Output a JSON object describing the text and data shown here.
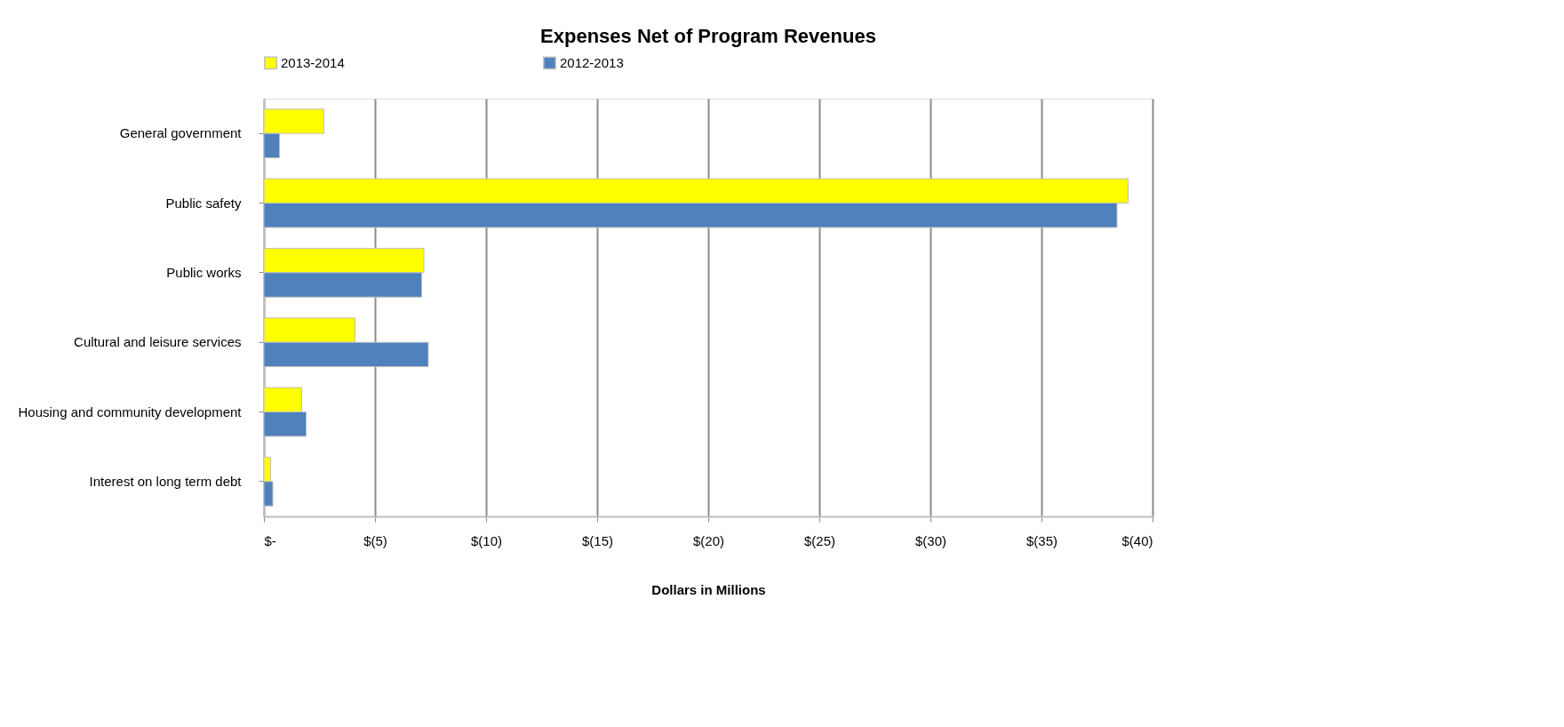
{
  "chart_data": {
    "type": "bar",
    "orientation": "horizontal",
    "title": "Expenses Net of Program  Revenues",
    "xlabel": "Dollars in Millions",
    "categories": [
      "General government",
      "Public safety",
      "Public works",
      "Cultural and leisure services",
      "Housing and community development",
      "Interest on long term debt"
    ],
    "series": [
      {
        "name": "2013-2014",
        "color": "#ffff00",
        "values": [
          -2.7,
          -38.9,
          -7.2,
          -4.1,
          -1.7,
          -0.3
        ]
      },
      {
        "name": "2012-2013",
        "color": "#4f81bd",
        "values": [
          -0.7,
          -38.4,
          -7.1,
          -7.4,
          -1.9,
          -0.4
        ]
      }
    ],
    "xlim": [
      0,
      -40
    ],
    "xticks": [
      {
        "value": 0,
        "label": "$-"
      },
      {
        "value": -5,
        "label": "$(5)"
      },
      {
        "value": -10,
        "label": "$(10)"
      },
      {
        "value": -15,
        "label": "$(15)"
      },
      {
        "value": -20,
        "label": "$(20)"
      },
      {
        "value": -25,
        "label": "$(25)"
      },
      {
        "value": -30,
        "label": "$(30)"
      },
      {
        "value": -35,
        "label": "$(35)"
      },
      {
        "value": -40,
        "label": "$(40)"
      }
    ],
    "grid": "x",
    "legend": "top"
  }
}
